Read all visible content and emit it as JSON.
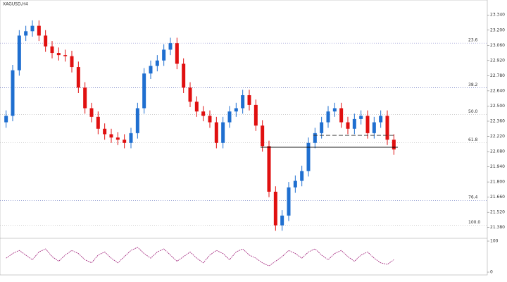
{
  "chart_data": {
    "type": "candlestick",
    "title": "XAGUSD,H4",
    "open": [
      22.35,
      22.41,
      22.83,
      23.15,
      23.19,
      23.24,
      23.15,
      23.05,
      22.99,
      22.97,
      22.96,
      22.86,
      22.67,
      22.48,
      22.4,
      22.29,
      22.24,
      22.21,
      22.19,
      22.16,
      22.25,
      22.48,
      22.8,
      22.87,
      22.92,
      23.02,
      23.08,
      22.89,
      22.67,
      22.54,
      22.45,
      22.41,
      22.35,
      22.16,
      22.35,
      22.45,
      22.48,
      22.6,
      22.51,
      22.32,
      22.13,
      21.71,
      21.4,
      21.49,
      21.75,
      21.81,
      21.9,
      22.16,
      22.25,
      22.35,
      22.45,
      22.48,
      22.35,
      22.29,
      22.38,
      22.41,
      22.25,
      22.35,
      22.41,
      22.19
    ],
    "high": [
      22.46,
      22.88,
      23.2,
      23.24,
      23.29,
      23.29,
      23.2,
      23.1,
      23.04,
      23.02,
      23.01,
      22.91,
      22.72,
      22.53,
      22.45,
      22.34,
      22.29,
      22.26,
      22.24,
      22.3,
      22.53,
      22.85,
      22.92,
      22.97,
      23.07,
      23.13,
      23.13,
      22.94,
      22.72,
      22.59,
      22.5,
      22.46,
      22.4,
      22.4,
      22.5,
      22.53,
      22.65,
      22.65,
      22.56,
      22.37,
      22.18,
      21.76,
      21.54,
      21.8,
      21.86,
      21.95,
      22.21,
      22.3,
      22.4,
      22.5,
      22.53,
      22.53,
      22.4,
      22.43,
      22.46,
      22.46,
      22.4,
      22.46,
      22.46,
      22.24
    ],
    "low": [
      22.3,
      22.36,
      22.78,
      23.1,
      23.14,
      23.1,
      23.0,
      22.94,
      22.92,
      22.91,
      22.81,
      22.62,
      22.43,
      22.35,
      22.24,
      22.19,
      22.16,
      22.14,
      22.11,
      22.11,
      22.2,
      22.43,
      22.75,
      22.82,
      22.87,
      22.97,
      22.84,
      22.62,
      22.49,
      22.4,
      22.36,
      22.3,
      22.11,
      22.11,
      22.3,
      22.4,
      22.43,
      22.46,
      22.27,
      22.08,
      21.66,
      21.35,
      21.35,
      21.44,
      21.7,
      21.76,
      21.85,
      22.11,
      22.2,
      22.3,
      22.4,
      22.3,
      22.24,
      22.24,
      22.33,
      22.2,
      22.2,
      22.3,
      22.14,
      22.05
    ],
    "close": [
      22.41,
      22.83,
      23.15,
      23.19,
      23.24,
      23.15,
      23.05,
      22.99,
      22.97,
      22.96,
      22.86,
      22.67,
      22.48,
      22.4,
      22.29,
      22.24,
      22.21,
      22.19,
      22.16,
      22.25,
      22.48,
      22.8,
      22.87,
      22.92,
      23.02,
      23.08,
      22.89,
      22.67,
      22.54,
      22.45,
      22.41,
      22.35,
      22.16,
      22.35,
      22.45,
      22.48,
      22.6,
      22.51,
      22.32,
      22.13,
      21.71,
      21.4,
      21.49,
      21.75,
      21.81,
      21.9,
      22.16,
      22.25,
      22.35,
      22.45,
      22.48,
      22.35,
      22.29,
      22.38,
      22.41,
      22.25,
      22.35,
      22.41,
      22.19,
      22.1
    ],
    "up_color": "#1f6fd0",
    "down_color": "#e01010",
    "ylim": [
      21.3,
      23.4
    ],
    "yticks": [
      {
        "value": 23.34,
        "label": "23.340"
      },
      {
        "value": 23.2,
        "label": "23.200"
      },
      {
        "value": 23.06,
        "label": "23.060"
      },
      {
        "value": 22.92,
        "label": "22.920"
      },
      {
        "value": 22.78,
        "label": "22.780"
      },
      {
        "value": 22.64,
        "label": "22.640"
      },
      {
        "value": 22.5,
        "label": "22.500"
      },
      {
        "value": 22.36,
        "label": "22.360"
      },
      {
        "value": 22.22,
        "label": "22.220"
      },
      {
        "value": 22.08,
        "label": "22.080"
      },
      {
        "value": 21.94,
        "label": "21.940"
      },
      {
        "value": 21.8,
        "label": "21.800"
      },
      {
        "value": 21.66,
        "label": "21.660"
      },
      {
        "value": 21.52,
        "label": "21.520"
      },
      {
        "value": 21.38,
        "label": "21.380"
      }
    ],
    "levels": [
      {
        "value": 23.08,
        "label": "23.6",
        "color": "#8888cc"
      },
      {
        "value": 22.67,
        "label": "38.2",
        "color": "#3344aa"
      },
      {
        "value": 22.42,
        "label": "50.0",
        "color": "#aaaaaa"
      },
      {
        "value": 22.16,
        "label": "61.8",
        "color": "#aaaaaa"
      },
      {
        "value": 21.63,
        "label": "76.4",
        "color": "#3344aa"
      },
      {
        "value": 21.4,
        "label": "100.0",
        "color": "#aaaaaa"
      }
    ],
    "support": 22.12,
    "resistance": 22.23,
    "oscillator": {
      "values": [
        45,
        60,
        70,
        55,
        40,
        65,
        75,
        50,
        35,
        55,
        70,
        60,
        40,
        30,
        55,
        65,
        45,
        30,
        50,
        70,
        80,
        60,
        45,
        65,
        75,
        55,
        35,
        50,
        65,
        45,
        30,
        55,
        70,
        60,
        40,
        65,
        75,
        55,
        45,
        30,
        20,
        35,
        50,
        70,
        60,
        45,
        65,
        75,
        55,
        40,
        60,
        70,
        50,
        35,
        55,
        65,
        45,
        30,
        25,
        40
      ],
      "color": "#a0207a",
      "ylim": [
        0,
        100
      ],
      "yticks": [
        0,
        100
      ]
    }
  }
}
